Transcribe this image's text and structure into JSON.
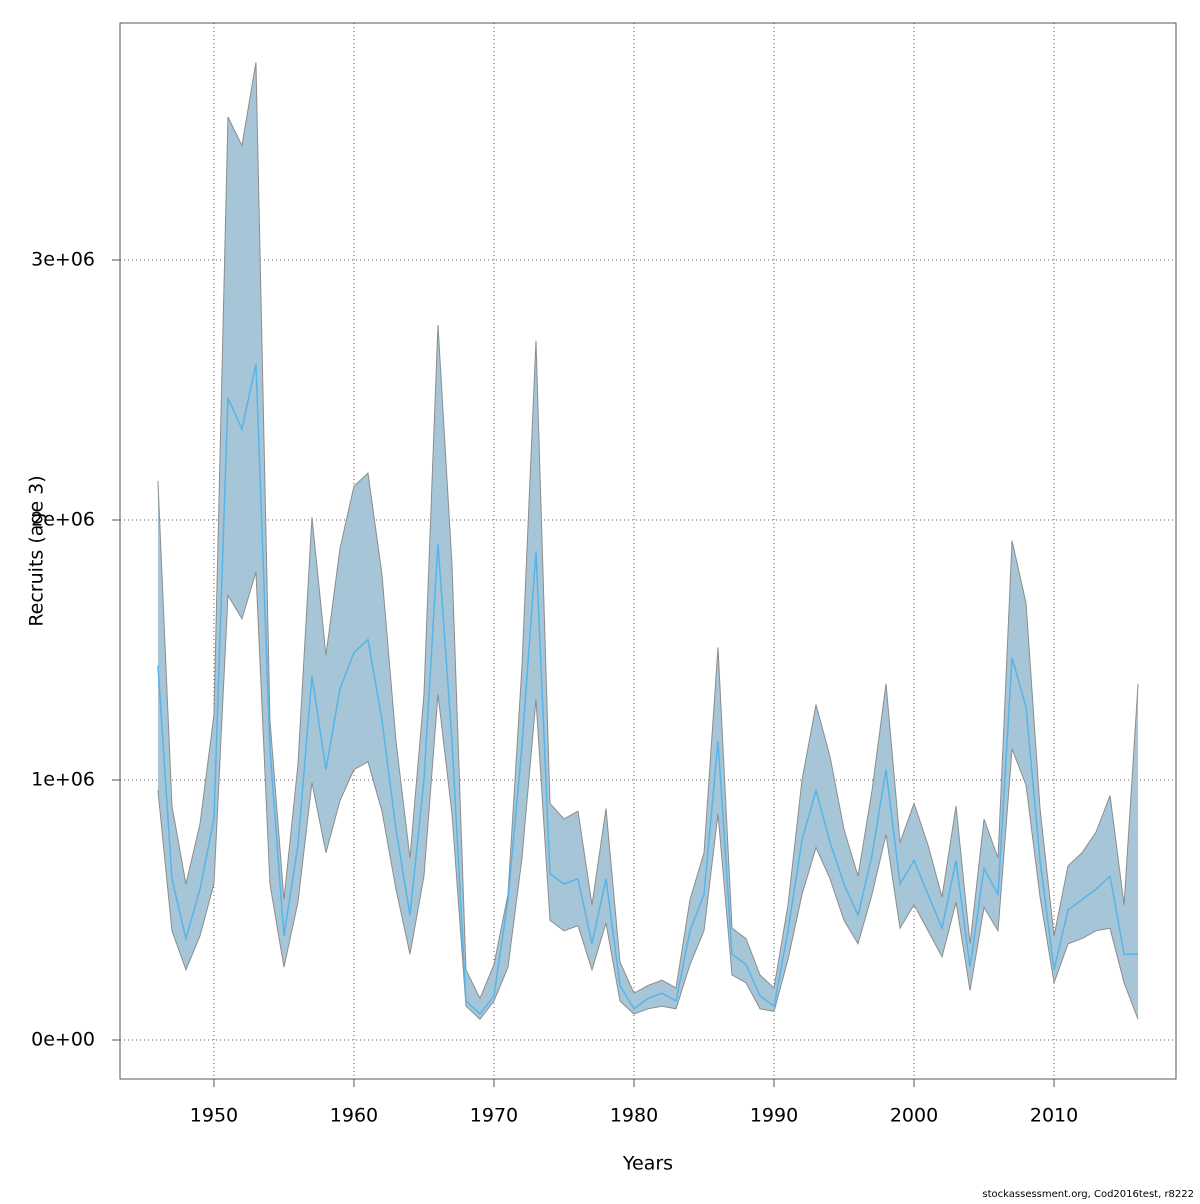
{
  "chart_data": {
    "type": "band-line",
    "x_label": "Years",
    "y_label": "Recruits (age 3)",
    "footnote": "stockassessment.org, Cod2016test, r8222",
    "x": [
      1946,
      1947,
      1948,
      1949,
      1950,
      1951,
      1952,
      1953,
      1954,
      1955,
      1956,
      1957,
      1958,
      1959,
      1960,
      1961,
      1962,
      1963,
      1964,
      1965,
      1966,
      1967,
      1968,
      1969,
      1970,
      1971,
      1972,
      1973,
      1974,
      1975,
      1976,
      1977,
      1978,
      1979,
      1980,
      1981,
      1982,
      1983,
      1984,
      1985,
      1986,
      1987,
      1988,
      1989,
      1990,
      1991,
      1992,
      1993,
      1994,
      1995,
      1996,
      1997,
      1998,
      1999,
      2000,
      2001,
      2002,
      2003,
      2004,
      2005,
      2006,
      2007,
      2008,
      2009,
      2010,
      2011,
      2012,
      2013,
      2014,
      2015,
      2016
    ],
    "values": [
      1440000,
      620000,
      390000,
      580000,
      850000,
      2470000,
      2350000,
      2600000,
      1120000,
      400000,
      750000,
      1400000,
      1040000,
      1350000,
      1490000,
      1540000,
      1230000,
      810000,
      480000,
      1000000,
      1910000,
      1150000,
      150000,
      100000,
      170000,
      540000,
      1130000,
      1880000,
      640000,
      600000,
      620000,
      370000,
      620000,
      210000,
      120000,
      160000,
      180000,
      150000,
      420000,
      560000,
      1150000,
      330000,
      290000,
      170000,
      130000,
      420000,
      770000,
      960000,
      760000,
      600000,
      480000,
      710000,
      1040000,
      600000,
      690000,
      560000,
      430000,
      690000,
      280000,
      660000,
      560000,
      1470000,
      1280000,
      690000,
      270000,
      500000,
      540000,
      580000,
      630000,
      330000,
      330000
    ],
    "lower": [
      960000,
      420000,
      270000,
      400000,
      600000,
      1710000,
      1620000,
      1800000,
      600000,
      280000,
      530000,
      990000,
      720000,
      920000,
      1040000,
      1070000,
      880000,
      580000,
      330000,
      630000,
      1330000,
      870000,
      130000,
      80000,
      150000,
      280000,
      700000,
      1310000,
      460000,
      420000,
      440000,
      270000,
      450000,
      150000,
      100000,
      120000,
      130000,
      120000,
      290000,
      420000,
      870000,
      250000,
      220000,
      120000,
      110000,
      310000,
      560000,
      740000,
      620000,
      460000,
      370000,
      560000,
      790000,
      430000,
      520000,
      420000,
      320000,
      530000,
      190000,
      510000,
      420000,
      1120000,
      980000,
      550000,
      220000,
      370000,
      390000,
      420000,
      430000,
      220000,
      80000
    ],
    "upper": [
      2150000,
      900000,
      600000,
      830000,
      1250000,
      3550000,
      3440000,
      3760000,
      1230000,
      540000,
      1060000,
      2010000,
      1480000,
      1890000,
      2130000,
      2180000,
      1790000,
      1150000,
      700000,
      1330000,
      2750000,
      1830000,
      270000,
      160000,
      290000,
      560000,
      1440000,
      2690000,
      910000,
      850000,
      880000,
      520000,
      890000,
      300000,
      180000,
      210000,
      230000,
      200000,
      540000,
      720000,
      1510000,
      430000,
      390000,
      250000,
      200000,
      520000,
      1000000,
      1290000,
      1090000,
      810000,
      630000,
      960000,
      1370000,
      760000,
      910000,
      750000,
      550000,
      900000,
      370000,
      850000,
      700000,
      1920000,
      1680000,
      890000,
      400000,
      670000,
      720000,
      800000,
      940000,
      520000,
      1370000
    ],
    "line_color": "#56b4e9",
    "band_color": "#a6c6d8",
    "band_edge_color": "#8c8c8c",
    "xlim": [
      1943.29,
      2018.71
    ],
    "ylim": [
      -150000,
      3911500
    ],
    "xticks": [
      1950,
      1960,
      1970,
      1980,
      1990,
      2000,
      2010
    ],
    "yticks": [
      {
        "value": 0,
        "label": "0e+00"
      },
      {
        "value": 1000000,
        "label": "1e+06"
      },
      {
        "value": 2000000,
        "label": "2e+06"
      },
      {
        "value": 3000000,
        "label": "3e+06"
      }
    ],
    "grid": true
  }
}
